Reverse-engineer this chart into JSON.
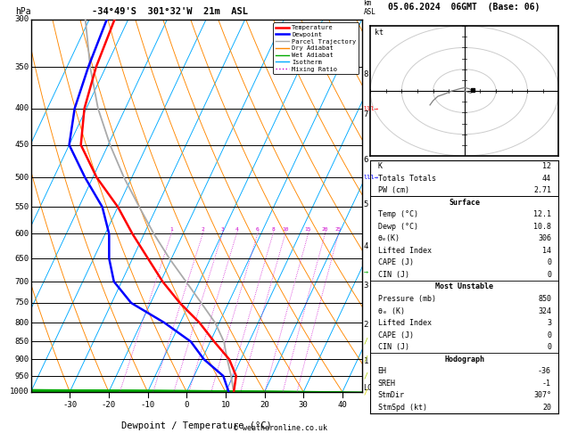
{
  "title_left": "-34°49'S  301°32'W  21m  ASL",
  "title_right": "05.06.2024  06GMT  (Base: 06)",
  "xlabel": "Dewpoint / Temperature (°C)",
  "pressure_levels": [
    300,
    350,
    400,
    450,
    500,
    550,
    600,
    650,
    700,
    750,
    800,
    850,
    900,
    950,
    1000
  ],
  "xlim": [
    -40,
    45
  ],
  "xticks": [
    -30,
    -20,
    -10,
    0,
    10,
    20,
    30,
    40
  ],
  "legend_entries": [
    "Temperature",
    "Dewpoint",
    "Parcel Trajectory",
    "Dry Adiabat",
    "Wet Adiabat",
    "Isotherm",
    "Mixing Ratio"
  ],
  "legend_colors": [
    "#ff0000",
    "#0000ff",
    "#aaaaaa",
    "#ff8800",
    "#00aa00",
    "#00aaff",
    "#cc00cc"
  ],
  "legend_styles": [
    "solid",
    "solid",
    "solid",
    "solid",
    "solid",
    "solid",
    "dotted"
  ],
  "temp_profile_T": [
    12.1,
    10.8,
    7.0,
    1.0,
    -5.0,
    -12.5,
    -19.5,
    -26.0,
    -33.0,
    -40.0,
    -49.0,
    -57.0,
    -60.5,
    -62.5,
    -63.5
  ],
  "temp_profile_Td": [
    10.8,
    7.5,
    0.5,
    -5.0,
    -14.0,
    -25.0,
    -32.0,
    -36.0,
    -39.0,
    -44.0,
    -52.0,
    -60.0,
    -63.0,
    -64.5,
    -65.5
  ],
  "temp_profile_P": [
    1000,
    950,
    900,
    850,
    800,
    750,
    700,
    650,
    600,
    550,
    500,
    450,
    400,
    350,
    300
  ],
  "parcel_T": [
    12.1,
    9.5,
    6.5,
    3.5,
    -1.0,
    -7.0,
    -13.5,
    -20.5,
    -27.5,
    -34.5,
    -42.0,
    -49.5,
    -57.0,
    -64.0,
    -71.0
  ],
  "parcel_P": [
    1000,
    950,
    900,
    850,
    800,
    750,
    700,
    650,
    600,
    550,
    500,
    450,
    400,
    350,
    300
  ],
  "skew": 45,
  "p_min": 300,
  "p_max": 1000,
  "km_ticks": [
    1,
    2,
    3,
    4,
    5,
    6,
    7,
    8
  ],
  "km_pressures": [
    905,
    805,
    710,
    625,
    545,
    472,
    408,
    358
  ],
  "mix_ratios": [
    1,
    2,
    3,
    4,
    6,
    8,
    10,
    15,
    20,
    25
  ],
  "info": {
    "K": 12,
    "Totals Totals": 44,
    "PW_cm": 2.71,
    "sfc_T": 12.1,
    "sfc_Td": 10.8,
    "sfc_thetae": 306,
    "sfc_LI": 14,
    "sfc_CAPE": 0,
    "sfc_CIN": 0,
    "mu_P": 850,
    "mu_thetae": 324,
    "mu_LI": 3,
    "mu_CAPE": 0,
    "mu_CIN": 0,
    "EH": -36,
    "SREH": -1,
    "StmDir": "307°",
    "StmSpd_kt": 20
  },
  "footer": "© weatheronline.co.uk"
}
